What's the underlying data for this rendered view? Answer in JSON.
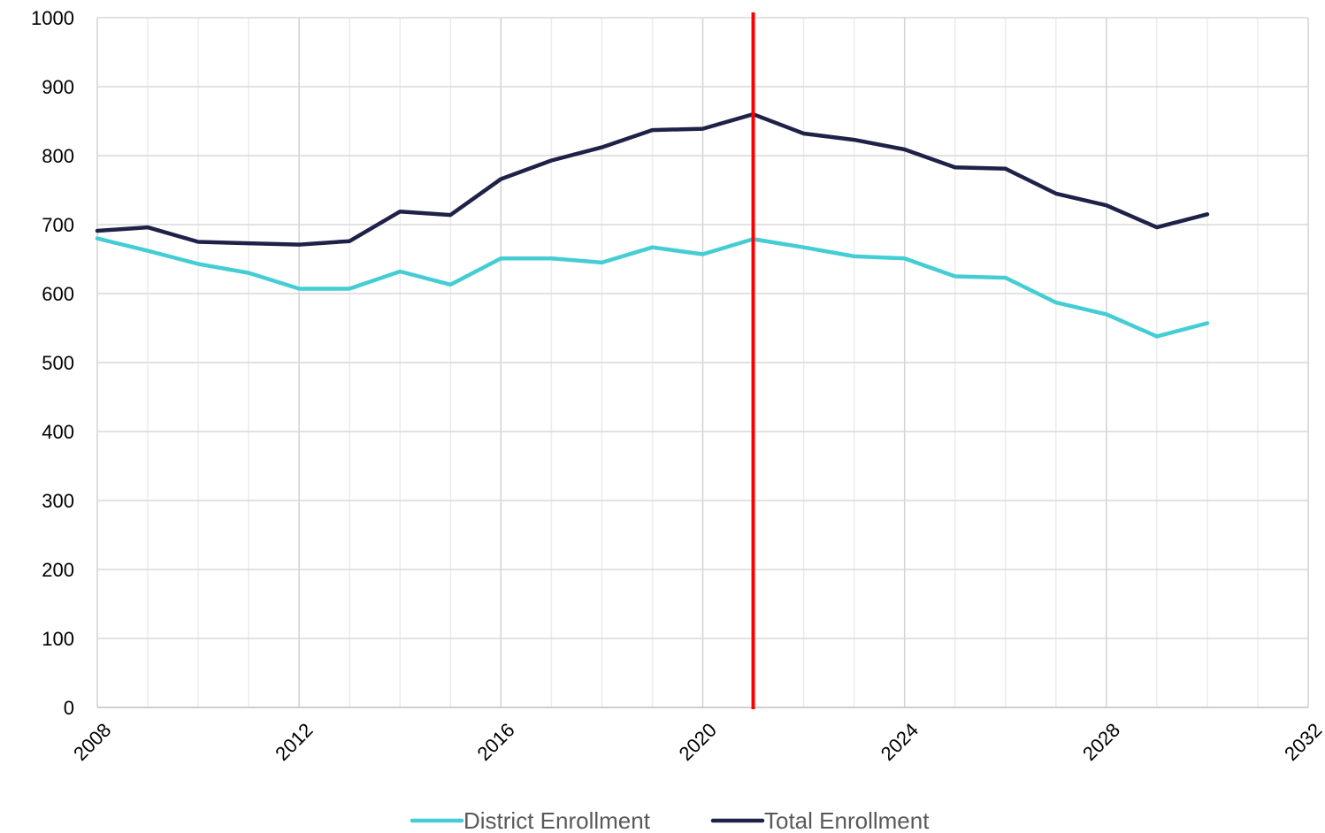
{
  "chart_data": {
    "type": "line",
    "title": "",
    "xlabel": "",
    "ylabel": "",
    "xlim": [
      2008,
      2032
    ],
    "ylim": [
      0,
      1000
    ],
    "x_ticks": [
      2008,
      2012,
      2016,
      2020,
      2024,
      2028,
      2032
    ],
    "y_ticks": [
      0,
      100,
      200,
      300,
      400,
      500,
      600,
      700,
      800,
      900,
      1000
    ],
    "grid": true,
    "legend_position": "bottom",
    "x": [
      2008,
      2009,
      2010,
      2011,
      2012,
      2013,
      2014,
      2015,
      2016,
      2017,
      2018,
      2019,
      2020,
      2021,
      2022,
      2023,
      2024,
      2025,
      2026,
      2027,
      2028,
      2029,
      2030
    ],
    "series": [
      {
        "name": "District Enrollment",
        "color": "#45cdd4",
        "values": [
          680,
          662,
          643,
          630,
          607,
          607,
          632,
          613,
          651,
          651,
          645,
          667,
          657,
          679,
          667,
          654,
          651,
          625,
          623,
          587,
          570,
          538,
          557
        ]
      },
      {
        "name": "Total Enrollment",
        "color": "#1f2248",
        "values": [
          691,
          696,
          675,
          673,
          671,
          676,
          719,
          714,
          766,
          793,
          812,
          837,
          839,
          860,
          832,
          823,
          809,
          783,
          781,
          745,
          728,
          696,
          715
        ]
      }
    ],
    "reference_line": {
      "x": 2021,
      "color": "#ff0000"
    }
  }
}
